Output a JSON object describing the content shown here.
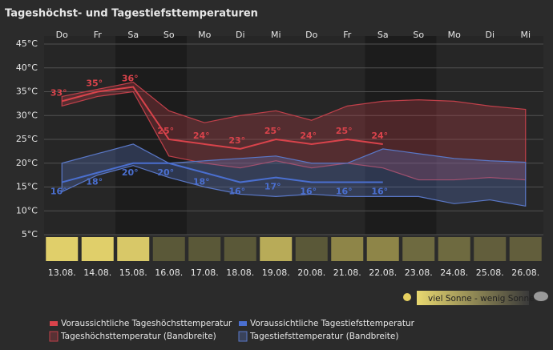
{
  "chart_data": {
    "type": "line",
    "title": "Tageshöchst- und Tagestiefsttemperaturen",
    "weekdays": [
      "Do",
      "Fr",
      "Sa",
      "So",
      "Mo",
      "Di",
      "Mi",
      "Do",
      "Fr",
      "Sa",
      "So",
      "Mo",
      "Di",
      "Mi"
    ],
    "categories": [
      "13.08.",
      "14.08.",
      "15.08.",
      "16.08.",
      "17.08.",
      "18.08.",
      "19.08.",
      "20.08.",
      "21.08.",
      "22.08.",
      "23.08.",
      "24.08.",
      "25.08.",
      "26.08."
    ],
    "ylim": [
      5,
      45
    ],
    "yticks": [
      {
        "value": 5,
        "label": "5°C"
      },
      {
        "value": 10,
        "label": "10°C"
      },
      {
        "value": 15,
        "label": "15°C"
      },
      {
        "value": 20,
        "label": "20°C"
      },
      {
        "value": 25,
        "label": "25°C"
      },
      {
        "value": 30,
        "label": "30°C"
      },
      {
        "value": 35,
        "label": "35°C"
      },
      {
        "value": 40,
        "label": "40°C"
      },
      {
        "value": 45,
        "label": "45°C"
      }
    ],
    "grid": true,
    "series": [
      {
        "name": "Voraussichtliche Tageshöchsttemperatur",
        "color": "#d9434b",
        "values": [
          33,
          35,
          36,
          25,
          24,
          23,
          25,
          24,
          25,
          24,
          null,
          null,
          null,
          null
        ],
        "value_labels": [
          "33°",
          "35°",
          "36°",
          "25°",
          "24°",
          "23°",
          "25°",
          "24°",
          "25°",
          "24°",
          null,
          null,
          null,
          null
        ]
      },
      {
        "name": "Voraussichtliche Tagestiefsttemperatur",
        "color": "#4a6fd0",
        "values": [
          16,
          18,
          20,
          20,
          18,
          16,
          17,
          16,
          16,
          16,
          null,
          null,
          null,
          null
        ],
        "value_labels": [
          "16°",
          "18°",
          "20°",
          "20°",
          "18°",
          "16°",
          "17°",
          "16°",
          "16°",
          "16°",
          null,
          null,
          null,
          null
        ]
      }
    ],
    "bands": [
      {
        "name": "Tageshöchsttemperatur (Bandbreite)",
        "color": "#c0404a",
        "upper": [
          34,
          35.5,
          37,
          31,
          28.5,
          30,
          31,
          29,
          32,
          33,
          33.3,
          33,
          32,
          31.3
        ],
        "lower": [
          32,
          34,
          35,
          21.5,
          20,
          19,
          20.5,
          19,
          20,
          19,
          16.5,
          16.5,
          17,
          16.5
        ]
      },
      {
        "name": "Tagestiefsttemperatur (Bandbreite)",
        "color": "#5a78c8",
        "upper": [
          20,
          22,
          24,
          20,
          20.5,
          21,
          21.5,
          20,
          20,
          23,
          22,
          21,
          20.5,
          20.2
        ],
        "lower": [
          14,
          17.5,
          19.5,
          17,
          15,
          13.5,
          13,
          13.5,
          13,
          13,
          13,
          11.5,
          12.3,
          11
        ]
      }
    ],
    "sun_colors": [
      "#e0cf6a",
      "#e0cf6a",
      "#d8c868",
      "#5a5838",
      "#5a5838",
      "#5a5838",
      "#b8ab58",
      "#5a5838",
      "#8e8548",
      "#8e8548",
      "#6e6a40",
      "#6e6a40",
      "#625e3c",
      "#625e3c"
    ],
    "sun_legend": "viel Sonne - wenig Sonne"
  }
}
